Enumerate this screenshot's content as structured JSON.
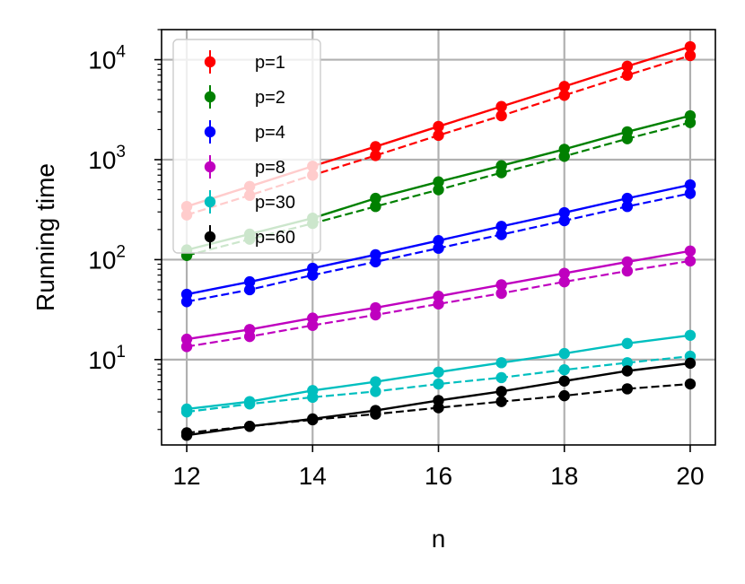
{
  "chart_data": {
    "type": "line",
    "title": "",
    "xlabel": "n",
    "ylabel": "Running time",
    "x_ticks": [
      12,
      14,
      16,
      18,
      20
    ],
    "y_scale": "log",
    "y_ticks": [
      {
        "value": 10,
        "base": "10",
        "exp": "1"
      },
      {
        "value": 100,
        "base": "10",
        "exp": "2"
      },
      {
        "value": 1000,
        "base": "10",
        "exp": "3"
      },
      {
        "value": 10000,
        "base": "10",
        "exp": "4"
      }
    ],
    "xlim": [
      11.6,
      20.4
    ],
    "ylim": [
      1.4,
      20000
    ],
    "grid": true,
    "legend_position": "top-left",
    "x": [
      12,
      13,
      14,
      15,
      16,
      17,
      18,
      19,
      20
    ],
    "series": [
      {
        "name": "p=1",
        "color": "#ff0000",
        "solid": [
          340,
          540,
          860,
          1350,
          2150,
          3400,
          5400,
          8600,
          13500
        ],
        "dashed": [
          280,
          440,
          700,
          1100,
          1750,
          2750,
          4400,
          7000,
          11000
        ]
      },
      {
        "name": "p=2",
        "color": "#008000",
        "solid": [
          125,
          180,
          260,
          410,
          600,
          870,
          1270,
          1900,
          2750
        ],
        "dashed": [
          110,
          160,
          230,
          340,
          500,
          740,
          1080,
          1620,
          2350
        ]
      },
      {
        "name": "p=4",
        "color": "#0000ff",
        "solid": [
          45,
          60,
          82,
          112,
          155,
          215,
          295,
          410,
          560
        ],
        "dashed": [
          38,
          50,
          70,
          95,
          130,
          178,
          245,
          340,
          460
        ]
      },
      {
        "name": "p=8",
        "color": "#bf00bf",
        "solid": [
          16,
          20,
          26,
          33,
          43,
          56,
          73,
          95,
          122
        ],
        "dashed": [
          13.5,
          17,
          22,
          28,
          36,
          46,
          60,
          77,
          97
        ]
      },
      {
        "name": "p=30",
        "color": "#00bfbf",
        "solid": [
          3.2,
          3.8,
          4.9,
          6.0,
          7.5,
          9.3,
          11.5,
          14.5,
          17.5
        ],
        "dashed": [
          3.0,
          3.6,
          4.2,
          4.8,
          5.7,
          6.6,
          7.9,
          9.3,
          10.8
        ]
      },
      {
        "name": "p=60",
        "color": "#000000",
        "solid": [
          1.75,
          2.15,
          2.55,
          3.1,
          3.9,
          4.8,
          6.1,
          7.7,
          9.2
        ],
        "dashed": [
          1.85,
          2.15,
          2.5,
          2.85,
          3.3,
          3.8,
          4.35,
          5.1,
          5.7
        ]
      }
    ]
  }
}
